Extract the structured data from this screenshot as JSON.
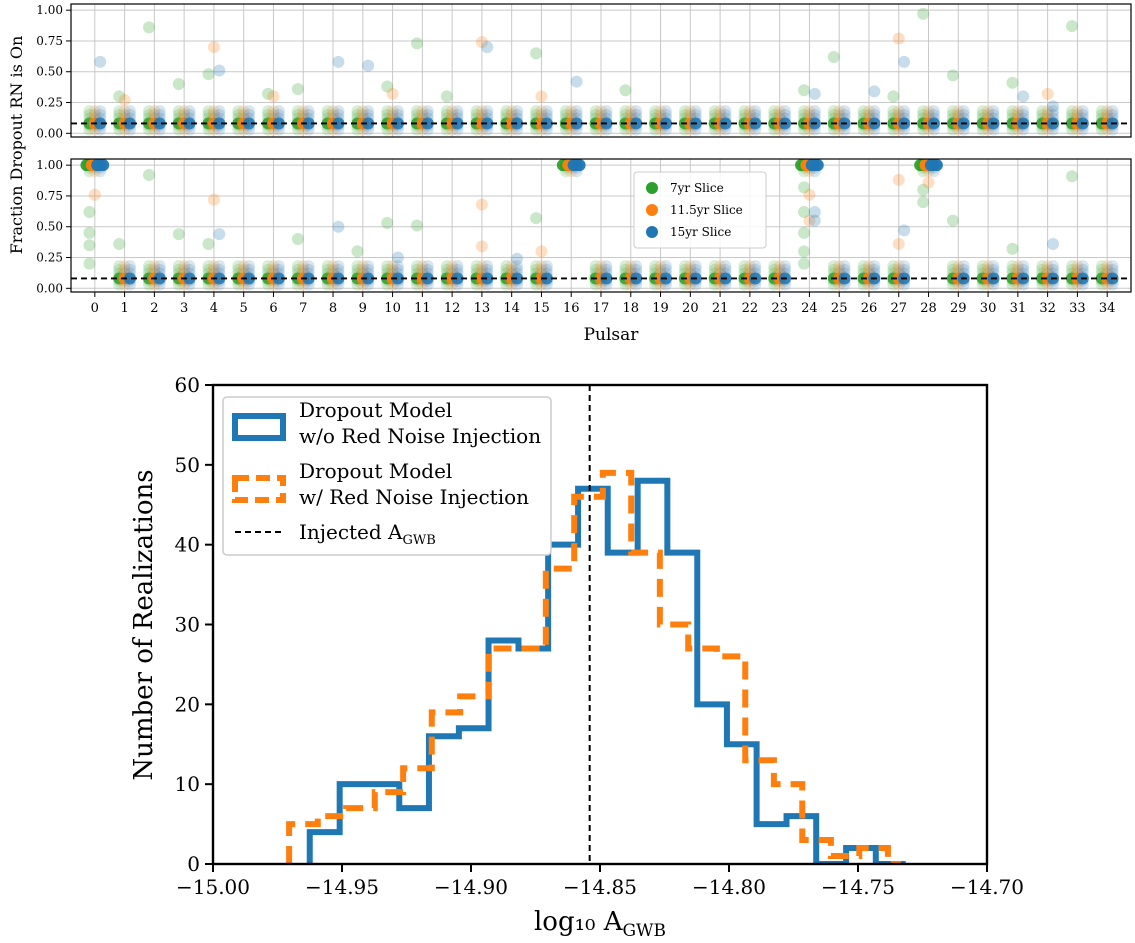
{
  "chart_data": [
    {
      "type": "scatter",
      "panel": "top",
      "title": "",
      "ylabel": "Fraction Dropout RN is On",
      "xlabel": "",
      "ylim": [
        -0.03,
        1.05
      ],
      "yticks": [
        "0.00",
        "0.25",
        "0.50",
        "0.75",
        "1.00"
      ],
      "grid": true,
      "reference_line_y": 0.08,
      "series": [
        {
          "name": "7yr Slice",
          "color": "#2ca02c",
          "offset": -0.18,
          "values": [
            0.08,
            0.08,
            0.08,
            0.08,
            0.08,
            0.08,
            0.08,
            0.08,
            0.08,
            0.08,
            0.08,
            0.08,
            0.08,
            0.08,
            0.08,
            0.08,
            0.08,
            0.08,
            0.08,
            0.08,
            0.08,
            0.08,
            0.08,
            0.08,
            0.08,
            0.08,
            0.08,
            0.08,
            0.08,
            0.08,
            0.08,
            0.08,
            0.08,
            0.08,
            0.08
          ],
          "outliers": [
            [
              1,
              0.3
            ],
            [
              2,
              0.86
            ],
            [
              3,
              0.4
            ],
            [
              4,
              0.48
            ],
            [
              6,
              0.32
            ],
            [
              7,
              0.36
            ],
            [
              10,
              0.38
            ],
            [
              11,
              0.73
            ],
            [
              12,
              0.3
            ],
            [
              15,
              0.65
            ],
            [
              18,
              0.35
            ],
            [
              24,
              0.35
            ],
            [
              25,
              0.62
            ],
            [
              27,
              0.3
            ],
            [
              28,
              0.97
            ],
            [
              29,
              0.47
            ],
            [
              31,
              0.41
            ],
            [
              33,
              0.87
            ]
          ]
        },
        {
          "name": "11.5yr Slice",
          "color": "#ff7f0e",
          "offset": 0.0,
          "values": [
            0.08,
            0.08,
            0.08,
            0.08,
            0.08,
            0.08,
            0.08,
            0.08,
            0.08,
            0.08,
            0.08,
            0.08,
            0.08,
            0.08,
            0.08,
            0.08,
            0.08,
            0.08,
            0.08,
            0.08,
            0.08,
            0.08,
            0.08,
            0.08,
            0.08,
            0.08,
            0.08,
            0.08,
            0.08,
            0.08,
            0.08,
            0.08,
            0.08,
            0.08,
            0.08
          ],
          "outliers": [
            [
              1,
              0.27
            ],
            [
              4,
              0.7
            ],
            [
              6,
              0.3
            ],
            [
              10,
              0.32
            ],
            [
              13,
              0.74
            ],
            [
              15,
              0.3
            ],
            [
              27,
              0.77
            ],
            [
              32,
              0.32
            ]
          ]
        },
        {
          "name": "15yr Slice",
          "color": "#1f77b4",
          "offset": 0.18,
          "values": [
            0.08,
            0.08,
            0.08,
            0.08,
            0.08,
            0.08,
            0.08,
            0.08,
            0.08,
            0.08,
            0.08,
            0.08,
            0.08,
            0.08,
            0.08,
            0.08,
            0.08,
            0.08,
            0.08,
            0.08,
            0.08,
            0.08,
            0.08,
            0.08,
            0.08,
            0.08,
            0.08,
            0.08,
            0.08,
            0.08,
            0.08,
            0.08,
            0.08,
            0.08,
            0.08
          ],
          "outliers": [
            [
              0,
              0.58
            ],
            [
              4,
              0.51
            ],
            [
              8,
              0.58
            ],
            [
              9,
              0.55
            ],
            [
              13,
              0.7
            ],
            [
              16,
              0.42
            ],
            [
              24,
              0.32
            ],
            [
              26,
              0.34
            ],
            [
              27,
              0.58
            ],
            [
              31,
              0.3
            ],
            [
              32,
              0.22
            ]
          ]
        }
      ]
    },
    {
      "type": "scatter",
      "panel": "bottom",
      "title": "",
      "xlabel": "Pulsar",
      "categories": [
        "0",
        "1",
        "2",
        "3",
        "4",
        "5",
        "6",
        "7",
        "8",
        "9",
        "10",
        "11",
        "12",
        "13",
        "14",
        "15",
        "16",
        "17",
        "18",
        "19",
        "20",
        "21",
        "22",
        "23",
        "24",
        "25",
        "26",
        "27",
        "28",
        "29",
        "30",
        "31",
        "32",
        "33",
        "34"
      ],
      "ylim": [
        -0.03,
        1.05
      ],
      "yticks": [
        "0.00",
        "0.25",
        "0.50",
        "0.75",
        "1.00"
      ],
      "grid": true,
      "legend": "center-right",
      "reference_line_y": 0.08,
      "series": [
        {
          "name": "7yr Slice",
          "color": "#2ca02c",
          "offset": -0.18,
          "values": [
            1.0,
            0.08,
            0.08,
            0.08,
            0.08,
            0.08,
            0.08,
            0.08,
            0.08,
            0.08,
            0.08,
            0.08,
            0.08,
            0.08,
            0.08,
            0.08,
            1.0,
            0.08,
            0.08,
            0.08,
            0.08,
            0.08,
            0.08,
            0.08,
            1.0,
            0.08,
            0.08,
            0.08,
            1.0,
            0.08,
            0.08,
            0.08,
            0.08,
            0.08,
            0.08
          ],
          "outliers": [
            [
              0,
              0.62
            ],
            [
              0,
              0.45
            ],
            [
              0,
              0.35
            ],
            [
              0,
              0.2
            ],
            [
              1,
              0.36
            ],
            [
              2,
              0.92
            ],
            [
              3,
              0.44
            ],
            [
              4,
              0.36
            ],
            [
              7,
              0.4
            ],
            [
              9,
              0.3
            ],
            [
              10,
              0.53
            ],
            [
              11,
              0.51
            ],
            [
              15,
              0.57
            ],
            [
              24,
              0.82
            ],
            [
              24,
              0.62
            ],
            [
              24,
              0.45
            ],
            [
              24,
              0.3
            ],
            [
              24,
              0.2
            ],
            [
              28,
              0.8
            ],
            [
              28,
              0.7
            ],
            [
              29,
              0.55
            ],
            [
              31,
              0.32
            ],
            [
              33,
              0.91
            ]
          ]
        },
        {
          "name": "11.5yr Slice",
          "color": "#ff7f0e",
          "offset": 0.0,
          "values": [
            1.0,
            0.08,
            0.08,
            0.08,
            0.08,
            0.08,
            0.08,
            0.08,
            0.08,
            0.08,
            0.08,
            0.08,
            0.08,
            0.08,
            0.08,
            0.08,
            1.0,
            0.08,
            0.08,
            0.08,
            0.08,
            0.08,
            0.08,
            0.08,
            1.0,
            0.08,
            0.08,
            0.08,
            1.0,
            0.08,
            0.08,
            0.08,
            0.08,
            0.08,
            0.08
          ],
          "outliers": [
            [
              0,
              0.76
            ],
            [
              4,
              0.72
            ],
            [
              13,
              0.68
            ],
            [
              13,
              0.34
            ],
            [
              15,
              0.3
            ],
            [
              24,
              0.76
            ],
            [
              24,
              0.55
            ],
            [
              27,
              0.88
            ],
            [
              27,
              0.36
            ],
            [
              28,
              0.86
            ]
          ]
        },
        {
          "name": "15yr Slice",
          "color": "#1f77b4",
          "offset": 0.18,
          "values": [
            1.0,
            0.08,
            0.08,
            0.08,
            0.08,
            0.08,
            0.08,
            0.08,
            0.08,
            0.08,
            0.08,
            0.08,
            0.08,
            0.08,
            0.08,
            0.08,
            1.0,
            0.08,
            0.08,
            0.08,
            0.08,
            0.08,
            0.08,
            0.08,
            1.0,
            0.08,
            0.08,
            0.08,
            1.0,
            0.08,
            0.08,
            0.08,
            0.08,
            0.08,
            0.08
          ],
          "outliers": [
            [
              4,
              0.44
            ],
            [
              8,
              0.5
            ],
            [
              10,
              0.25
            ],
            [
              14,
              0.24
            ],
            [
              24,
              0.62
            ],
            [
              24,
              0.55
            ],
            [
              27,
              0.47
            ],
            [
              32,
              0.36
            ]
          ]
        }
      ]
    },
    {
      "type": "histogram",
      "panel": "main",
      "title": "",
      "xlabel": "log₁₀ A",
      "xlabel_sub": "GWB",
      "ylabel": "Number of Realizations",
      "xlim": [
        -15.0,
        -14.7
      ],
      "ylim": [
        0,
        60
      ],
      "xticks": [
        -15.0,
        -14.95,
        -14.9,
        -14.85,
        -14.8,
        -14.75,
        -14.7
      ],
      "xtick_labels": [
        "−15.00",
        "−14.95",
        "−14.90",
        "−14.85",
        "−14.80",
        "−14.75",
        "−14.70"
      ],
      "yticks": [
        0,
        10,
        20,
        30,
        40,
        50,
        60
      ],
      "grid": false,
      "legend": "top-left",
      "injected_value": -14.854,
      "series": [
        {
          "name_lines": [
            "Dropout Model",
            "w/o Red Noise Injection"
          ],
          "color": "#1f77b4",
          "style": "solid",
          "edges": [
            -14.9625,
            -14.9509,
            -14.9394,
            -14.9278,
            -14.9163,
            -14.9047,
            -14.8932,
            -14.8816,
            -14.8701,
            -14.8585,
            -14.847,
            -14.8354,
            -14.8239,
            -14.8123,
            -14.8008,
            -14.7893,
            -14.7777,
            -14.7662,
            -14.7546,
            -14.7431,
            -14.7315
          ],
          "values": [
            4,
            10,
            10,
            7,
            16,
            17,
            28,
            27,
            40,
            47,
            39,
            48,
            39,
            20,
            15,
            5,
            6,
            0,
            2,
            0
          ]
        },
        {
          "name_lines": [
            "Dropout Model",
            "w/ Red Noise Injection"
          ],
          "color": "#ff7f0e",
          "style": "dashed",
          "edges": [
            -14.9705,
            -14.9594,
            -14.9484,
            -14.9373,
            -14.9263,
            -14.9152,
            -14.9042,
            -14.8931,
            -14.8821,
            -14.871,
            -14.86,
            -14.8489,
            -14.8379,
            -14.8268,
            -14.8158,
            -14.8047,
            -14.7937,
            -14.7826,
            -14.7716,
            -14.7605,
            -14.7495,
            -14.7384,
            -14.7333
          ],
          "values": [
            5,
            6,
            7,
            9,
            12,
            19,
            21,
            27,
            27,
            37,
            46,
            49,
            39,
            30,
            27,
            26,
            13,
            10,
            3,
            1,
            2,
            0
          ]
        },
        {
          "name_lines": [
            "Injected A",
            "GWB"
          ],
          "color": "#000000",
          "style": "dashed-line"
        }
      ]
    }
  ]
}
